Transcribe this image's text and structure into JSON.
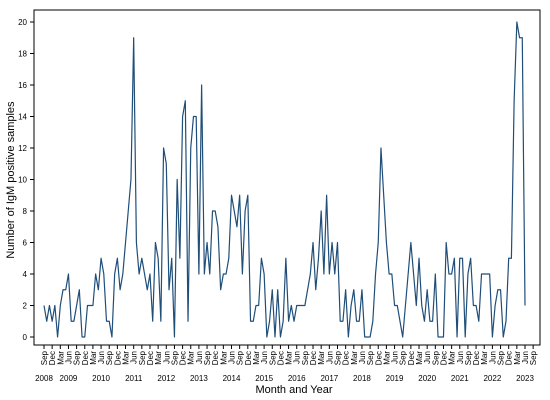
{
  "chart_data": {
    "type": "line",
    "title": "",
    "xlabel": "Month and Year",
    "ylabel": "Number of IgM positive samples",
    "ylim": [
      0,
      20
    ],
    "yticks": [
      0,
      2,
      4,
      6,
      8,
      10,
      12,
      14,
      16,
      18,
      20
    ],
    "grid": false,
    "legend": "none",
    "colors": {
      "line": "#1f4e79",
      "axis": "#000000",
      "background": "#ffffff"
    },
    "x_start": "2008-09",
    "x_end": "2023-09",
    "month_ticks": [
      "Sep",
      "Dec",
      "Mar",
      "Jun",
      "Sep",
      "Dec",
      "Mar",
      "Jun",
      "Sep",
      "Dec",
      "Mar",
      "Jun",
      "Sep",
      "Dec",
      "Mar",
      "Jun",
      "Sep",
      "Dec",
      "Mar",
      "Jun",
      "Sep",
      "Dec",
      "Mar",
      "Jun",
      "Sep",
      "Dec",
      "Mar",
      "Jun",
      "Sep",
      "Dec",
      "Mar",
      "Jun",
      "Sep",
      "Dec",
      "Mar",
      "Jun",
      "Sep",
      "Dec",
      "Mar",
      "Jun",
      "Sep",
      "Dec",
      "Mar",
      "Jun",
      "Sep",
      "Dec",
      "Mar",
      "Jun",
      "Sep",
      "Dec",
      "Mar",
      "Jun",
      "Sep",
      "Dec",
      "Mar",
      "Jun",
      "Sep",
      "Dec",
      "Mar",
      "Jun",
      "Sep"
    ],
    "year_labels": [
      "2008",
      "2009",
      "2010",
      "2011",
      "2012",
      "2013",
      "2014",
      "2015",
      "2016",
      "2017",
      "2018",
      "2019",
      "2020",
      "2021",
      "2022",
      "2023"
    ],
    "series": [
      {
        "values": [
          2,
          1,
          2,
          1,
          2,
          0,
          2,
          3,
          3,
          4,
          1,
          1,
          2,
          3,
          0,
          0,
          2,
          2,
          2,
          4,
          3,
          5,
          4,
          1,
          1,
          0,
          4,
          5,
          3,
          4,
          6,
          8,
          10,
          19,
          6,
          4,
          5,
          4,
          3,
          4,
          1,
          6,
          5,
          1,
          12,
          11,
          3,
          5,
          0,
          10,
          5,
          14,
          15,
          1,
          12,
          14,
          14,
          4,
          16,
          4,
          6,
          4,
          8,
          8,
          7,
          3,
          4,
          4,
          5,
          9,
          8,
          7,
          9,
          4,
          8,
          9,
          1,
          1,
          2,
          2,
          5,
          4,
          0,
          1,
          3,
          0,
          3,
          0,
          1,
          5,
          1,
          2,
          1,
          2,
          2,
          2,
          2,
          3,
          4,
          6,
          3,
          5,
          8,
          4,
          9,
          4,
          6,
          4,
          6,
          1,
          1,
          3,
          0,
          2,
          3,
          1,
          1,
          3,
          0,
          0,
          0,
          1,
          4,
          6,
          12,
          9,
          6,
          4,
          4,
          2,
          2,
          1,
          0,
          2,
          4,
          6,
          4,
          2,
          5,
          2,
          1,
          3,
          1,
          1,
          4,
          0,
          0,
          0,
          6,
          4,
          4,
          5,
          0,
          5,
          5,
          0,
          4,
          5,
          2,
          2,
          1,
          4,
          4,
          4,
          4,
          0,
          2,
          3,
          3,
          0,
          1,
          5,
          5,
          15,
          20,
          19,
          19,
          2
        ]
      }
    ]
  }
}
